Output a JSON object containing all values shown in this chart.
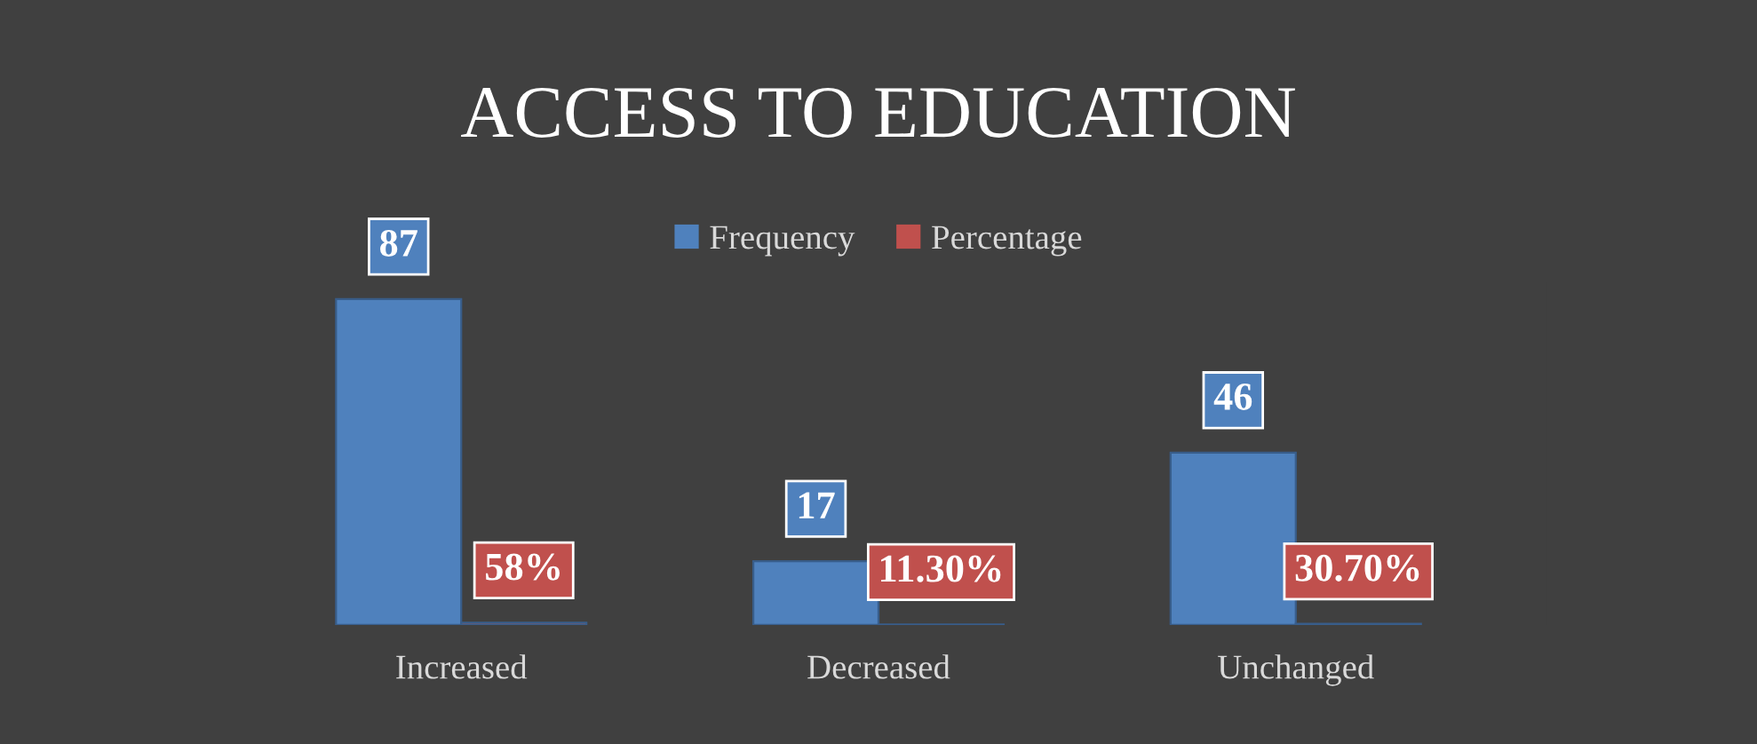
{
  "chart_data": {
    "type": "bar",
    "title": "ACCESS TO EDUCATION",
    "categories": [
      "Increased",
      "Decreased",
      "Unchanged"
    ],
    "series": [
      {
        "name": "Frequency",
        "color": "#4f81bd",
        "values": [
          87,
          17,
          46
        ],
        "value_labels": [
          "87",
          "17",
          "46"
        ]
      },
      {
        "name": "Percentage",
        "color": "#c0504d",
        "values": [
          0.58,
          0.113,
          0.307
        ],
        "value_labels": [
          "58%",
          "11.30%",
          "30.70%"
        ]
      }
    ],
    "legend": "top",
    "grid": false
  }
}
